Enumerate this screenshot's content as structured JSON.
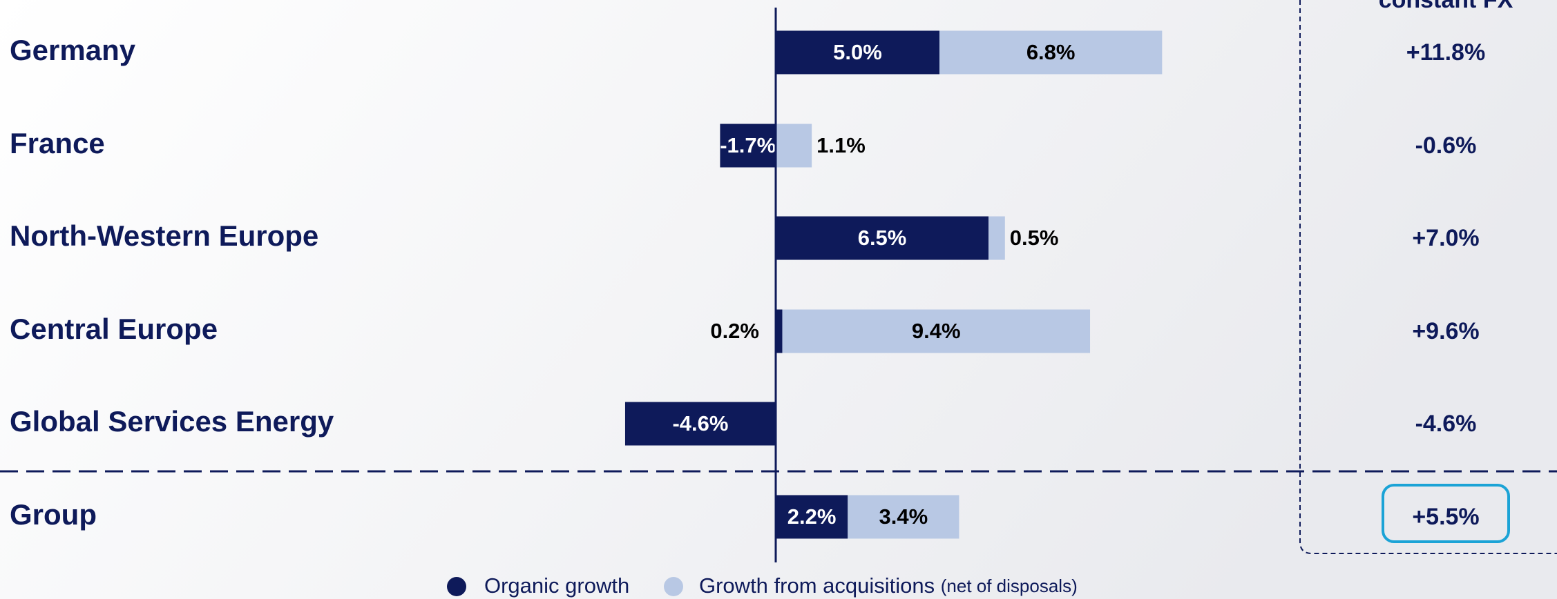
{
  "chart_data": {
    "type": "bar",
    "orientation": "horizontal",
    "stacked": true,
    "column_header": "constant FX",
    "categories": [
      "Germany",
      "France",
      "North-Western Europe",
      "Central Europe",
      "Global Services Energy",
      "Group"
    ],
    "series": [
      {
        "name": "Organic growth",
        "color": "#0e1a5a",
        "values": [
          5.0,
          -1.7,
          6.5,
          0.2,
          -4.6,
          2.2
        ],
        "value_labels": [
          "5.0%",
          "-1.7%",
          "6.5%",
          "0.2%",
          "-4.6%",
          "2.2%"
        ]
      },
      {
        "name": "Growth from acquisitions",
        "note": "(net of disposals)",
        "color": "#b8c8e4",
        "values": [
          6.8,
          1.1,
          0.5,
          9.4,
          null,
          3.4
        ],
        "value_labels": [
          "6.8%",
          "1.1%",
          "0.5%",
          "9.4%",
          null,
          "3.4%"
        ]
      }
    ],
    "totals": [
      {
        "value": 11.8,
        "label": "+11.8%"
      },
      {
        "value": -0.6,
        "label": "-0.6%"
      },
      {
        "value": 7.0,
        "label": "+7.0%"
      },
      {
        "value": 9.6,
        "label": "+9.6%"
      },
      {
        "value": -4.6,
        "label": "-4.6%"
      },
      {
        "value": 5.5,
        "label": "+5.5%"
      }
    ]
  }
}
